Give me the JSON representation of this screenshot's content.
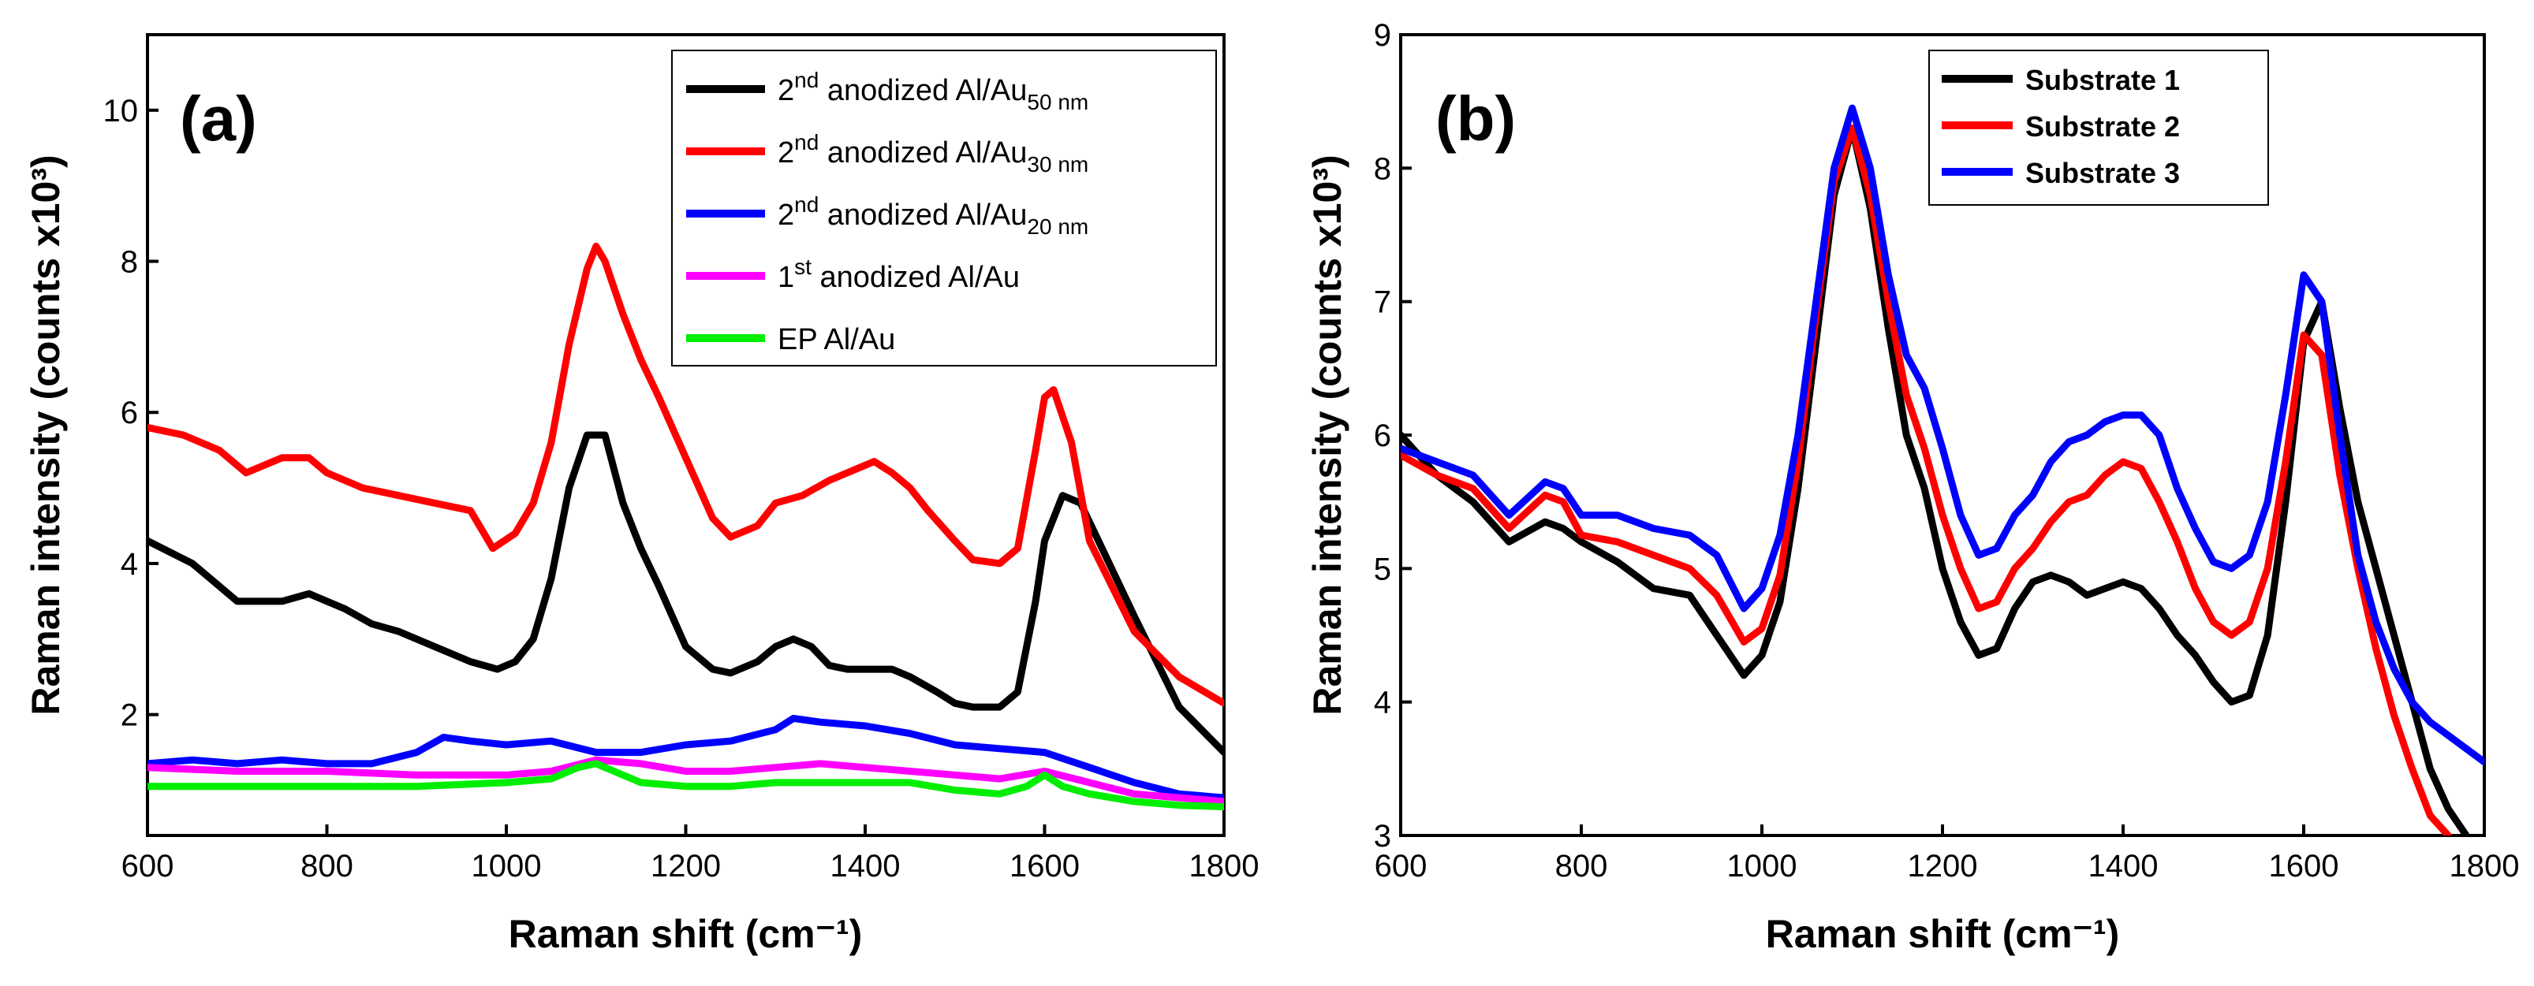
{
  "chart_data": [
    {
      "type": "line",
      "panel": "(a)",
      "xlabel": "Raman shift (cm⁻¹)",
      "ylabel": "Raman intensity (counts x10³)",
      "xlim": [
        600,
        1800
      ],
      "ylim": [
        0.4,
        11
      ],
      "xticks": [
        "600",
        "800",
        "1000",
        "1200",
        "1400",
        "1600",
        "1800"
      ],
      "yticks": [
        "2",
        "4",
        "6",
        "8",
        "10"
      ],
      "legend_position": "top-right",
      "series": [
        {
          "name": "2nd anodized Al/Au50 nm",
          "label_base": "2",
          "label_sup": "nd",
          "label_mid": " anodized Al/Au",
          "label_sub": "50 nm",
          "color": "#000000",
          "x": [
            600,
            650,
            700,
            750,
            780,
            820,
            850,
            880,
            920,
            960,
            990,
            1010,
            1030,
            1050,
            1070,
            1090,
            1110,
            1130,
            1150,
            1170,
            1200,
            1230,
            1250,
            1280,
            1300,
            1320,
            1340,
            1360,
            1380,
            1400,
            1430,
            1450,
            1480,
            1500,
            1520,
            1550,
            1570,
            1590,
            1600,
            1620,
            1640,
            1660,
            1700,
            1750,
            1800
          ],
          "y": [
            4.3,
            4.0,
            3.5,
            3.5,
            3.6,
            3.4,
            3.2,
            3.1,
            2.9,
            2.7,
            2.6,
            2.7,
            3.0,
            3.8,
            5.0,
            5.7,
            5.7,
            4.8,
            4.2,
            3.7,
            2.9,
            2.6,
            2.55,
            2.7,
            2.9,
            3.0,
            2.9,
            2.65,
            2.6,
            2.6,
            2.6,
            2.5,
            2.3,
            2.15,
            2.1,
            2.1,
            2.3,
            3.5,
            4.3,
            4.9,
            4.8,
            4.3,
            3.3,
            2.1,
            1.5
          ]
        },
        {
          "name": "2nd anodized Al/Au30 nm",
          "label_base": "2",
          "label_sup": "nd",
          "label_mid": " anodized Al/Au",
          "label_sub": "30 nm",
          "color": "#ff0000",
          "x": [
            600,
            640,
            680,
            710,
            750,
            780,
            800,
            840,
            880,
            920,
            960,
            985,
            1010,
            1030,
            1050,
            1070,
            1090,
            1100,
            1110,
            1130,
            1150,
            1170,
            1200,
            1230,
            1250,
            1280,
            1300,
            1330,
            1360,
            1380,
            1400,
            1410,
            1430,
            1450,
            1470,
            1500,
            1520,
            1550,
            1570,
            1590,
            1600,
            1610,
            1630,
            1650,
            1700,
            1750,
            1800
          ],
          "y": [
            5.8,
            5.7,
            5.5,
            5.2,
            5.4,
            5.4,
            5.2,
            5.0,
            4.9,
            4.8,
            4.7,
            4.2,
            4.4,
            4.8,
            5.6,
            6.9,
            7.9,
            8.2,
            8.0,
            7.3,
            6.7,
            6.2,
            5.4,
            4.6,
            4.35,
            4.5,
            4.8,
            4.9,
            5.1,
            5.2,
            5.3,
            5.35,
            5.2,
            5.0,
            4.7,
            4.3,
            4.05,
            4.0,
            4.2,
            5.5,
            6.2,
            6.3,
            5.6,
            4.3,
            3.1,
            2.5,
            2.15
          ]
        },
        {
          "name": "2nd anodized Al/Au20 nm",
          "label_base": "2",
          "label_sup": "nd",
          "label_mid": " anodized Al/Au",
          "label_sub": "20 nm",
          "color": "#0000ff",
          "x": [
            600,
            650,
            700,
            750,
            800,
            850,
            900,
            930,
            960,
            1000,
            1050,
            1100,
            1150,
            1200,
            1250,
            1300,
            1320,
            1350,
            1400,
            1450,
            1500,
            1550,
            1600,
            1650,
            1700,
            1750,
            1800
          ],
          "y": [
            1.35,
            1.4,
            1.35,
            1.4,
            1.35,
            1.35,
            1.5,
            1.7,
            1.65,
            1.6,
            1.65,
            1.5,
            1.5,
            1.6,
            1.65,
            1.8,
            1.95,
            1.9,
            1.85,
            1.75,
            1.6,
            1.55,
            1.5,
            1.3,
            1.1,
            0.95,
            0.9
          ]
        },
        {
          "name": "1st anodized Al/Au",
          "label_base": "1",
          "label_sup": "st",
          "label_mid": " anodized Al/Au",
          "label_sub": "",
          "color": "#ff00ff",
          "x": [
            600,
            700,
            800,
            900,
            1000,
            1050,
            1100,
            1150,
            1200,
            1250,
            1300,
            1350,
            1400,
            1450,
            1500,
            1550,
            1600,
            1650,
            1700,
            1750,
            1800
          ],
          "y": [
            1.3,
            1.25,
            1.25,
            1.2,
            1.2,
            1.25,
            1.4,
            1.35,
            1.25,
            1.25,
            1.3,
            1.35,
            1.3,
            1.25,
            1.2,
            1.15,
            1.25,
            1.1,
            0.95,
            0.9,
            0.85
          ]
        },
        {
          "name": "EP Al/Au",
          "label_base": "EP Al/Au",
          "label_sup": "",
          "label_mid": "",
          "label_sub": "",
          "color": "#00ee00",
          "x": [
            600,
            700,
            800,
            900,
            1000,
            1050,
            1080,
            1100,
            1120,
            1150,
            1200,
            1250,
            1300,
            1350,
            1400,
            1450,
            1500,
            1550,
            1580,
            1600,
            1620,
            1650,
            1700,
            1750,
            1800
          ],
          "y": [
            1.05,
            1.05,
            1.05,
            1.05,
            1.1,
            1.15,
            1.3,
            1.35,
            1.25,
            1.1,
            1.05,
            1.05,
            1.1,
            1.1,
            1.1,
            1.1,
            1.0,
            0.95,
            1.05,
            1.2,
            1.05,
            0.95,
            0.85,
            0.8,
            0.78
          ]
        }
      ]
    },
    {
      "type": "line",
      "panel": "(b)",
      "xlabel": "Raman shift (cm⁻¹)",
      "ylabel": "Raman intensity (counts x10³)",
      "xlim": [
        600,
        1800
      ],
      "ylim": [
        3,
        9
      ],
      "xticks": [
        "600",
        "800",
        "1000",
        "1200",
        "1400",
        "1600",
        "1800"
      ],
      "yticks": [
        "3",
        "4",
        "5",
        "6",
        "7",
        "8",
        "9"
      ],
      "legend_position": "top-right",
      "series": [
        {
          "name": "Substrate 1",
          "color": "#000000",
          "x": [
            600,
            640,
            680,
            720,
            760,
            780,
            800,
            840,
            880,
            920,
            950,
            980,
            1000,
            1020,
            1040,
            1060,
            1080,
            1100,
            1120,
            1140,
            1160,
            1180,
            1200,
            1220,
            1240,
            1260,
            1280,
            1300,
            1320,
            1340,
            1360,
            1380,
            1400,
            1420,
            1440,
            1460,
            1480,
            1500,
            1520,
            1540,
            1560,
            1580,
            1600,
            1620,
            1640,
            1660,
            1680,
            1700,
            1720,
            1740,
            1760,
            1780
          ],
          "y": [
            6.0,
            5.7,
            5.5,
            5.2,
            5.35,
            5.3,
            5.2,
            5.05,
            4.85,
            4.8,
            4.5,
            4.2,
            4.35,
            4.75,
            5.6,
            6.7,
            7.8,
            8.3,
            7.7,
            6.8,
            6.0,
            5.6,
            5.0,
            4.6,
            4.35,
            4.4,
            4.7,
            4.9,
            4.95,
            4.9,
            4.8,
            4.85,
            4.9,
            4.85,
            4.7,
            4.5,
            4.35,
            4.15,
            4.0,
            4.05,
            4.5,
            5.5,
            6.7,
            7.0,
            6.2,
            5.5,
            5.0,
            4.5,
            4.0,
            3.5,
            3.2,
            3.0
          ]
        },
        {
          "name": "Substrate 2",
          "color": "#ff0000",
          "x": [
            600,
            640,
            680,
            720,
            760,
            780,
            800,
            840,
            880,
            920,
            950,
            980,
            1000,
            1020,
            1040,
            1060,
            1080,
            1100,
            1120,
            1140,
            1160,
            1180,
            1200,
            1220,
            1240,
            1260,
            1280,
            1300,
            1320,
            1340,
            1360,
            1380,
            1400,
            1420,
            1440,
            1460,
            1480,
            1500,
            1520,
            1540,
            1560,
            1580,
            1600,
            1620,
            1640,
            1660,
            1680,
            1700,
            1720,
            1740,
            1760
          ],
          "y": [
            5.85,
            5.7,
            5.6,
            5.3,
            5.55,
            5.5,
            5.25,
            5.2,
            5.1,
            5.0,
            4.8,
            4.45,
            4.55,
            4.95,
            5.8,
            6.9,
            7.9,
            8.3,
            7.8,
            7.0,
            6.3,
            5.9,
            5.4,
            5.0,
            4.7,
            4.75,
            5.0,
            5.15,
            5.35,
            5.5,
            5.55,
            5.7,
            5.8,
            5.75,
            5.5,
            5.2,
            4.85,
            4.6,
            4.5,
            4.6,
            5.0,
            5.8,
            6.75,
            6.6,
            5.7,
            5.0,
            4.4,
            3.9,
            3.5,
            3.15,
            3.0
          ]
        },
        {
          "name": "Substrate 3",
          "color": "#0000ff",
          "x": [
            600,
            640,
            680,
            720,
            760,
            780,
            800,
            840,
            880,
            920,
            950,
            980,
            1000,
            1020,
            1040,
            1060,
            1080,
            1100,
            1120,
            1140,
            1160,
            1180,
            1200,
            1220,
            1240,
            1260,
            1280,
            1300,
            1320,
            1340,
            1360,
            1380,
            1400,
            1420,
            1440,
            1460,
            1480,
            1500,
            1520,
            1540,
            1560,
            1580,
            1600,
            1620,
            1640,
            1660,
            1680,
            1700,
            1720,
            1740,
            1760,
            1780,
            1800
          ],
          "y": [
            5.9,
            5.8,
            5.7,
            5.4,
            5.65,
            5.6,
            5.4,
            5.4,
            5.3,
            5.25,
            5.1,
            4.7,
            4.85,
            5.25,
            6.0,
            7.0,
            8.0,
            8.45,
            8.0,
            7.2,
            6.6,
            6.35,
            5.9,
            5.4,
            5.1,
            5.15,
            5.4,
            5.55,
            5.8,
            5.95,
            6.0,
            6.1,
            6.15,
            6.15,
            6.0,
            5.6,
            5.3,
            5.05,
            5.0,
            5.1,
            5.5,
            6.3,
            7.2,
            7.0,
            6.0,
            5.1,
            4.6,
            4.25,
            4.0,
            3.85,
            3.75,
            3.65,
            3.55
          ]
        }
      ]
    }
  ]
}
